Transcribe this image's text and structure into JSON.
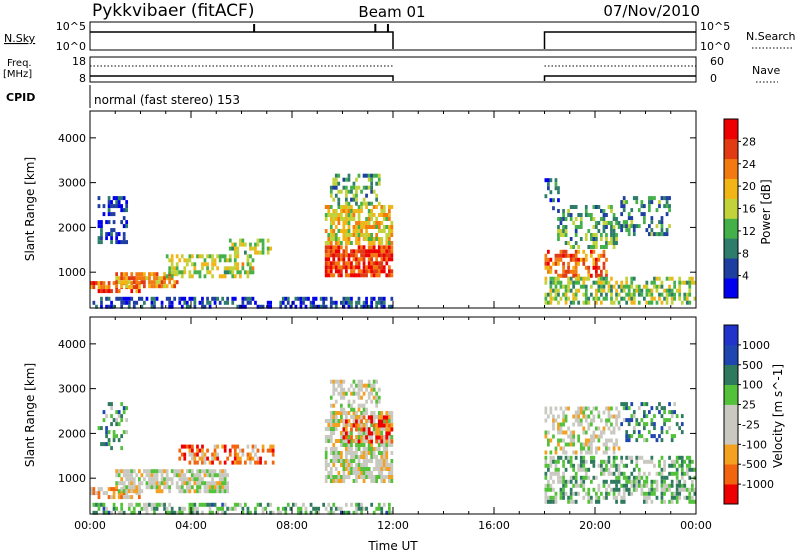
{
  "header": {
    "station": "Pykkvibaer (fitACF)",
    "beam": "Beam 01",
    "date": "07/Nov/2010"
  },
  "panels": {
    "nsky": {
      "left_label": "N.Sky",
      "right_label": "N.Search",
      "ticks_left": [
        "10^5",
        "10^0"
      ],
      "ticks_right": [
        "10^5",
        "10^0"
      ]
    },
    "freq": {
      "left_label_1": "Freq.",
      "left_label_2": "[MHz]",
      "right_label": "Nave",
      "ticks_left": [
        "18",
        "8"
      ],
      "ticks_right": [
        "60",
        "0"
      ]
    },
    "cpid": {
      "label": "CPID",
      "text": "normal (fast stereo) 153"
    }
  },
  "colors": {
    "power": [
      "#0000ee",
      "#1f3fa0",
      "#2e7d6a",
      "#43b04a",
      "#c2d23a",
      "#f2b516",
      "#f37a10",
      "#e23a12",
      "#ee0000"
    ],
    "velocity": [
      "#ee0000",
      "#f2640e",
      "#f4a020",
      "#c9c9c1",
      "#c9c9c1",
      "#53c23a",
      "#2f7a5e",
      "#1f45b0",
      "#2233cc"
    ]
  },
  "chart_data": [
    {
      "type": "heatmap",
      "name": "power",
      "ylabel": "Slant Range [km]",
      "yticks": [
        1000,
        2000,
        3000,
        4000
      ],
      "ylim": [
        200,
        4600
      ],
      "colorbar_label": "Power [dB]",
      "colorbar_ticks": [
        "4",
        "8",
        "12",
        "16",
        "20",
        "24",
        "28"
      ],
      "blobs": [
        {
          "t0": 0.1,
          "t1": 12.0,
          "r0": 220,
          "r1": 450,
          "level": 0.15,
          "density": 0.5
        },
        {
          "t0": 0.0,
          "t1": 2.0,
          "r0": 500,
          "r1": 800,
          "level": 0.75,
          "density": 0.7
        },
        {
          "t0": 0.3,
          "t1": 1.5,
          "r0": 1600,
          "r1": 2700,
          "level": 0.15,
          "density": 0.4
        },
        {
          "t0": 1.0,
          "t1": 3.5,
          "r0": 600,
          "r1": 1000,
          "level": 0.7,
          "density": 0.75
        },
        {
          "t0": 3.0,
          "t1": 6.5,
          "r0": 900,
          "r1": 1400,
          "level": 0.5,
          "density": 0.5
        },
        {
          "t0": 5.5,
          "t1": 7.3,
          "r0": 1400,
          "r1": 1750,
          "level": 0.45,
          "density": 0.6
        },
        {
          "t0": 9.3,
          "t1": 12.0,
          "r0": 900,
          "r1": 1600,
          "level": 0.85,
          "density": 0.8
        },
        {
          "t0": 9.3,
          "t1": 12.0,
          "r0": 1600,
          "r1": 2500,
          "level": 0.55,
          "density": 0.7
        },
        {
          "t0": 9.5,
          "t1": 11.5,
          "r0": 2500,
          "r1": 3200,
          "level": 0.35,
          "density": 0.5
        },
        {
          "t0": 18.0,
          "t1": 20.5,
          "r0": 900,
          "r1": 1500,
          "level": 0.75,
          "density": 0.6
        },
        {
          "t0": 18.0,
          "t1": 24.0,
          "r0": 300,
          "r1": 900,
          "level": 0.45,
          "density": 0.55
        },
        {
          "t0": 18.5,
          "t1": 21.0,
          "r0": 1500,
          "r1": 2500,
          "level": 0.35,
          "density": 0.4
        },
        {
          "t0": 21.0,
          "t1": 23.0,
          "r0": 1800,
          "r1": 2700,
          "level": 0.3,
          "density": 0.35
        },
        {
          "t0": 18.0,
          "t1": 18.6,
          "r0": 2400,
          "r1": 3100,
          "level": 0.2,
          "density": 0.3
        }
      ]
    },
    {
      "type": "heatmap",
      "name": "velocity",
      "ylabel": "Slant Range [km]",
      "yticks": [
        1000,
        2000,
        3000,
        4000
      ],
      "ylim": [
        200,
        4600
      ],
      "xlabel": "Time UT",
      "xticks": [
        "00:00",
        "04:00",
        "08:00",
        "12:00",
        "16:00",
        "20:00",
        "00:00"
      ],
      "xlim": [
        0,
        24
      ],
      "colorbar_label": "Velocity [m s^-1]",
      "colorbar_ticks": [
        "-1000",
        "-500",
        "-100",
        "-25",
        "25",
        "100",
        "500",
        "1000"
      ],
      "blobs": [
        {
          "t0": 0.1,
          "t1": 12.0,
          "r0": 220,
          "r1": 450,
          "level": 0.62,
          "density": 0.5
        },
        {
          "t0": 0.0,
          "t1": 2.0,
          "r0": 500,
          "r1": 800,
          "level": 0.3,
          "density": 0.6
        },
        {
          "t0": 0.3,
          "t1": 1.5,
          "r0": 1600,
          "r1": 2700,
          "level": 0.65,
          "density": 0.35
        },
        {
          "t0": 1.0,
          "t1": 5.5,
          "r0": 700,
          "r1": 1200,
          "level": 0.45,
          "density": 0.75
        },
        {
          "t0": 3.5,
          "t1": 7.3,
          "r0": 1300,
          "r1": 1750,
          "level": 0.2,
          "density": 0.5
        },
        {
          "t0": 9.3,
          "t1": 12.0,
          "r0": 900,
          "r1": 2500,
          "level": 0.45,
          "density": 0.75
        },
        {
          "t0": 10.0,
          "t1": 12.0,
          "r0": 1800,
          "r1": 2400,
          "level": 0.15,
          "density": 0.4
        },
        {
          "t0": 9.5,
          "t1": 11.5,
          "r0": 2500,
          "r1": 3200,
          "level": 0.45,
          "density": 0.5
        },
        {
          "t0": 18.0,
          "t1": 24.0,
          "r0": 400,
          "r1": 1500,
          "level": 0.6,
          "density": 0.55
        },
        {
          "t0": 18.0,
          "t1": 21.0,
          "r0": 1500,
          "r1": 2600,
          "level": 0.45,
          "density": 0.45
        },
        {
          "t0": 21.0,
          "t1": 23.5,
          "r0": 1800,
          "r1": 2700,
          "level": 0.7,
          "density": 0.35
        }
      ]
    }
  ]
}
